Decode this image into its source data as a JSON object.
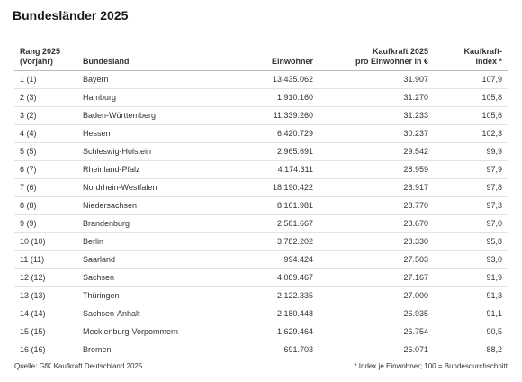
{
  "title": "Bundesländer 2025",
  "columns": {
    "rank": [
      "Rang 2025",
      "(Vorjahr)"
    ],
    "land": [
      "Bundesland"
    ],
    "pop": [
      "Einwohner"
    ],
    "kauf": [
      "Kaufkraft 2025",
      "pro Einwohner in €"
    ],
    "idx": [
      "Kaufkraft-",
      "index *"
    ]
  },
  "rows": [
    {
      "rank": "1 (1)",
      "land": "Bayern",
      "pop": "13.435.062",
      "kauf": "31.907",
      "idx": "107,9"
    },
    {
      "rank": "2 (3)",
      "land": "Hamburg",
      "pop": "1.910.160",
      "kauf": "31.270",
      "idx": "105,8"
    },
    {
      "rank": "3 (2)",
      "land": "Baden-Württemberg",
      "pop": "11.339.260",
      "kauf": "31.233",
      "idx": "105,6"
    },
    {
      "rank": "4 (4)",
      "land": "Hessen",
      "pop": "6.420.729",
      "kauf": "30.237",
      "idx": "102,3"
    },
    {
      "rank": "5 (5)",
      "land": "Schleswig-Holstein",
      "pop": "2.965.691",
      "kauf": "29.542",
      "idx": "99,9"
    },
    {
      "rank": "6 (7)",
      "land": "Rheinland-Pfalz",
      "pop": "4.174.311",
      "kauf": "28.959",
      "idx": "97,9"
    },
    {
      "rank": "7 (6)",
      "land": "Nordrhein-Westfalen",
      "pop": "18.190.422",
      "kauf": "28.917",
      "idx": "97,8"
    },
    {
      "rank": "8 (8)",
      "land": "Niedersachsen",
      "pop": "8.161.981",
      "kauf": "28.770",
      "idx": "97,3"
    },
    {
      "rank": "9 (9)",
      "land": "Brandenburg",
      "pop": "2.581.667",
      "kauf": "28.670",
      "idx": "97,0"
    },
    {
      "rank": "10 (10)",
      "land": "Berlin",
      "pop": "3.782.202",
      "kauf": "28.330",
      "idx": "95,8"
    },
    {
      "rank": "11 (11)",
      "land": "Saarland",
      "pop": "994.424",
      "kauf": "27.503",
      "idx": "93,0"
    },
    {
      "rank": "12 (12)",
      "land": "Sachsen",
      "pop": "4.089.467",
      "kauf": "27.167",
      "idx": "91,9"
    },
    {
      "rank": "13 (13)",
      "land": "Thüringen",
      "pop": "2.122.335",
      "kauf": "27.000",
      "idx": "91,3"
    },
    {
      "rank": "14 (14)",
      "land": "Sachsen-Anhalt",
      "pop": "2.180.448",
      "kauf": "26.935",
      "idx": "91,1"
    },
    {
      "rank": "15 (15)",
      "land": "Mecklenburg-Vorpommern",
      "pop": "1.629.464",
      "kauf": "26.754",
      "idx": "90,5"
    },
    {
      "rank": "16 (16)",
      "land": "Bremen",
      "pop": "691.703",
      "kauf": "26.071",
      "idx": "88,2"
    }
  ],
  "footer": {
    "source": "Quelle: GfK Kaufkraft Deutschland 2025",
    "note": "* Index je Einwohner; 100 = Bundesdurchschnitt"
  }
}
